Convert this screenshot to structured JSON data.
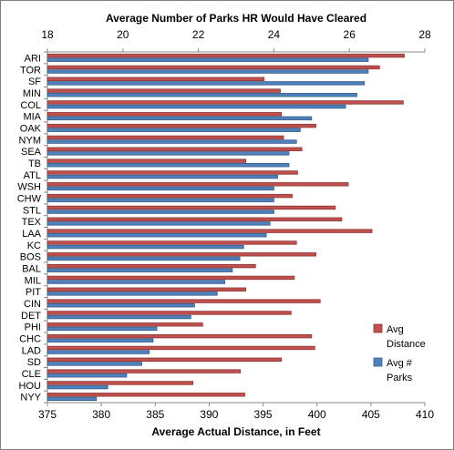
{
  "chart_data": {
    "type": "bar",
    "orientation": "horizontal",
    "title": "Average Number of Parks HR Would Have Cleared",
    "xlabel": "Average Actual Distance, in Feet",
    "bottom_axis": {
      "min": 375,
      "max": 410,
      "ticks": [
        375,
        380,
        385,
        390,
        395,
        400,
        405,
        410
      ]
    },
    "top_axis": {
      "min": 18,
      "max": 28,
      "ticks": [
        18,
        20,
        22,
        24,
        26,
        28
      ]
    },
    "categories": [
      "ARI",
      "TOR",
      "SF",
      "MIN",
      "COL",
      "MIA",
      "OAK",
      "NYM",
      "SEA",
      "TB",
      "ATL",
      "WSH",
      "CHW",
      "STL",
      "TEX",
      "LAA",
      "KC",
      "BOS",
      "BAL",
      "MIL",
      "PIT",
      "CIN",
      "DET",
      "PHI",
      "CHC",
      "LAD",
      "SD",
      "CLE",
      "HOU",
      "NYY"
    ],
    "series": [
      {
        "name": "Avg Distance",
        "axis": "bottom",
        "color": "#c0504d",
        "values": [
          408.1,
          405.8,
          395.1,
          396.6,
          408.0,
          396.7,
          399.9,
          396.9,
          398.6,
          393.4,
          398.2,
          402.9,
          397.7,
          401.7,
          402.3,
          405.1,
          398.1,
          399.9,
          394.3,
          397.9,
          393.4,
          400.3,
          397.6,
          389.4,
          399.5,
          399.8,
          396.7,
          392.9,
          388.5,
          393.3
        ]
      },
      {
        "name": "Avg # Parks",
        "axis": "top",
        "color": "#4f81bd",
        "values": [
          26.5,
          26.5,
          26.4,
          26.2,
          25.9,
          25.0,
          24.7,
          24.6,
          24.4,
          24.4,
          24.1,
          24.0,
          24.0,
          24.0,
          23.9,
          23.8,
          23.2,
          23.1,
          22.9,
          22.7,
          22.5,
          21.9,
          21.8,
          20.9,
          20.8,
          20.7,
          20.5,
          20.1,
          19.6,
          19.3
        ]
      }
    ],
    "legend": {
      "position": "right",
      "entries": [
        "Avg Distance",
        "Avg # Parks"
      ]
    },
    "grid": false
  },
  "legend_lines": {
    "distance": [
      "Avg",
      "Distance"
    ],
    "parks": [
      "Avg #",
      "Parks"
    ]
  }
}
